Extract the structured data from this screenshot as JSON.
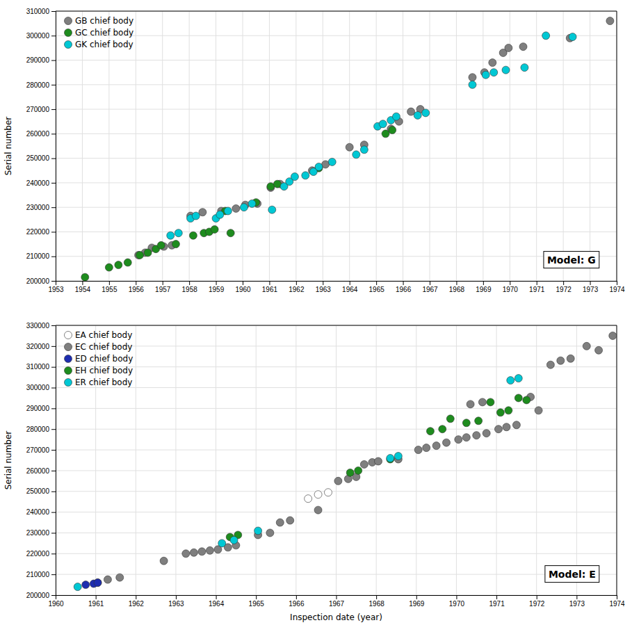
{
  "chart_data": [
    {
      "type": "scatter",
      "title": "Model: G",
      "ylabel": "Serial number",
      "xlim": [
        1953,
        1974
      ],
      "xticks": [
        1953,
        1954,
        1955,
        1956,
        1957,
        1958,
        1959,
        1960,
        1961,
        1962,
        1963,
        1964,
        1965,
        1966,
        1967,
        1968,
        1969,
        1970,
        1971,
        1972,
        1973,
        1974
      ],
      "ylim": [
        200000,
        310000
      ],
      "yticks": [
        200000,
        210000,
        220000,
        230000,
        240000,
        250000,
        260000,
        270000,
        280000,
        290000,
        300000,
        310000
      ],
      "grid": true,
      "legend": "top-left",
      "series": [
        {
          "name": "GB chief body",
          "color": "#7f7f7f",
          "x": [
            1956.1,
            1956.35,
            1956.6,
            1957.05,
            1957.35,
            1958.05,
            1958.5,
            1959.2,
            1959.75,
            1960.1,
            1960.55,
            1961.05,
            1961.4,
            1962.6,
            1963.1,
            1964.0,
            1964.55,
            1965.55,
            1965.85,
            1966.3,
            1966.65,
            1968.6,
            1969.05,
            1969.35,
            1969.75,
            1969.95,
            1970.5,
            1972.25,
            1973.75
          ],
          "values": [
            210500,
            211500,
            213500,
            214000,
            214500,
            226500,
            228000,
            228500,
            229500,
            231000,
            231500,
            238000,
            239500,
            245000,
            247500,
            254500,
            255500,
            262000,
            265000,
            269000,
            270000,
            283000,
            285000,
            289000,
            293000,
            295000,
            295500,
            299000,
            306000
          ]
        },
        {
          "name": "GC chief body",
          "color": "#1e8c1e",
          "x": [
            1954.1,
            1955.0,
            1955.35,
            1955.7,
            1956.15,
            1956.45,
            1956.75,
            1956.95,
            1957.5,
            1958.15,
            1958.55,
            1958.75,
            1958.95,
            1959.35,
            1959.55,
            1960.5,
            1961.05,
            1961.3,
            1962.85,
            1965.35,
            1965.6
          ],
          "values": [
            201500,
            205500,
            206500,
            207500,
            210500,
            211500,
            213000,
            214500,
            215000,
            218500,
            219500,
            220000,
            221000,
            228500,
            219500,
            232000,
            238500,
            239500,
            246000,
            260000,
            261500
          ]
        },
        {
          "name": "GK chief body",
          "color": "#00c8d4",
          "x": [
            1957.3,
            1957.6,
            1958.05,
            1958.25,
            1959.0,
            1959.15,
            1959.45,
            1960.05,
            1960.35,
            1961.1,
            1961.55,
            1961.75,
            1961.95,
            1962.35,
            1962.65,
            1962.85,
            1963.35,
            1964.25,
            1964.55,
            1965.05,
            1965.25,
            1965.55,
            1965.75,
            1966.55,
            1966.85,
            1968.6,
            1969.1,
            1969.4,
            1969.85,
            1970.55,
            1971.35,
            1972.35
          ],
          "values": [
            218500,
            219500,
            225500,
            226500,
            225500,
            227000,
            228500,
            230000,
            231500,
            229000,
            238500,
            240500,
            242500,
            243000,
            244500,
            246500,
            248500,
            251500,
            253500,
            263000,
            264000,
            265500,
            267000,
            267500,
            268500,
            280000,
            284000,
            285000,
            286000,
            287000,
            300000,
            299500
          ]
        }
      ]
    },
    {
      "type": "scatter",
      "title": "Model: E",
      "ylabel": "Serial number",
      "xlabel": "Inspection date (year)",
      "xlim": [
        1960,
        1974
      ],
      "xticks": [
        1960,
        1961,
        1962,
        1963,
        1964,
        1965,
        1966,
        1967,
        1968,
        1969,
        1970,
        1971,
        1972,
        1973,
        1974
      ],
      "ylim": [
        200000,
        330000
      ],
      "yticks": [
        200000,
        210000,
        220000,
        230000,
        240000,
        250000,
        260000,
        270000,
        280000,
        290000,
        300000,
        310000,
        320000,
        330000
      ],
      "grid": true,
      "legend": "top-left",
      "series": [
        {
          "name": "EA chief body",
          "color": "#ffffff",
          "x": [
            1966.3,
            1966.55,
            1966.8
          ],
          "values": [
            246500,
            248500,
            249500
          ]
        },
        {
          "name": "EC chief body",
          "color": "#7f7f7f",
          "x": [
            1961.05,
            1961.3,
            1961.6,
            1962.7,
            1963.25,
            1963.45,
            1963.65,
            1963.85,
            1964.05,
            1964.3,
            1964.5,
            1965.05,
            1965.35,
            1965.6,
            1965.85,
            1966.55,
            1967.05,
            1967.3,
            1967.5,
            1967.7,
            1967.9,
            1968.05,
            1968.55,
            1969.05,
            1969.25,
            1969.5,
            1969.75,
            1970.05,
            1970.25,
            1970.5,
            1970.75,
            1971.05,
            1971.25,
            1971.5,
            1970.35,
            1970.65,
            1971.85,
            1972.05,
            1972.35,
            1972.6,
            1972.85,
            1973.25,
            1973.55,
            1973.9
          ],
          "values": [
            206000,
            207500,
            208500,
            216500,
            220000,
            220500,
            221000,
            221500,
            222000,
            223000,
            224000,
            229000,
            230000,
            235000,
            236000,
            241000,
            255000,
            256000,
            257000,
            263000,
            264000,
            264500,
            265500,
            270000,
            271000,
            272000,
            273500,
            275000,
            276000,
            277000,
            278000,
            280000,
            281000,
            282000,
            292000,
            293000,
            295500,
            289000,
            311000,
            313000,
            314000,
            320000,
            318000,
            325000
          ]
        },
        {
          "name": "ED chief body",
          "color": "#1e2db0",
          "x": [
            1960.75,
            1960.95,
            1961.05
          ],
          "values": [
            205000,
            205500,
            206000
          ]
        },
        {
          "name": "EH chief body",
          "color": "#1e8c1e",
          "x": [
            1964.35,
            1964.55,
            1967.35,
            1967.55,
            1968.35,
            1969.35,
            1969.65,
            1969.85,
            1970.25,
            1970.55,
            1971.1,
            1971.3,
            1971.55,
            1971.75,
            1970.85
          ],
          "values": [
            228000,
            229000,
            259000,
            260000,
            265500,
            279000,
            280000,
            285000,
            283000,
            284000,
            288000,
            289000,
            295000,
            294000,
            293000
          ]
        },
        {
          "name": "ER chief body",
          "color": "#00c8d4",
          "x": [
            1960.55,
            1964.15,
            1964.45,
            1965.05,
            1968.35,
            1968.55,
            1971.35,
            1971.55
          ],
          "values": [
            204000,
            225000,
            226500,
            231000,
            266000,
            267000,
            303500,
            304500
          ]
        }
      ]
    }
  ]
}
